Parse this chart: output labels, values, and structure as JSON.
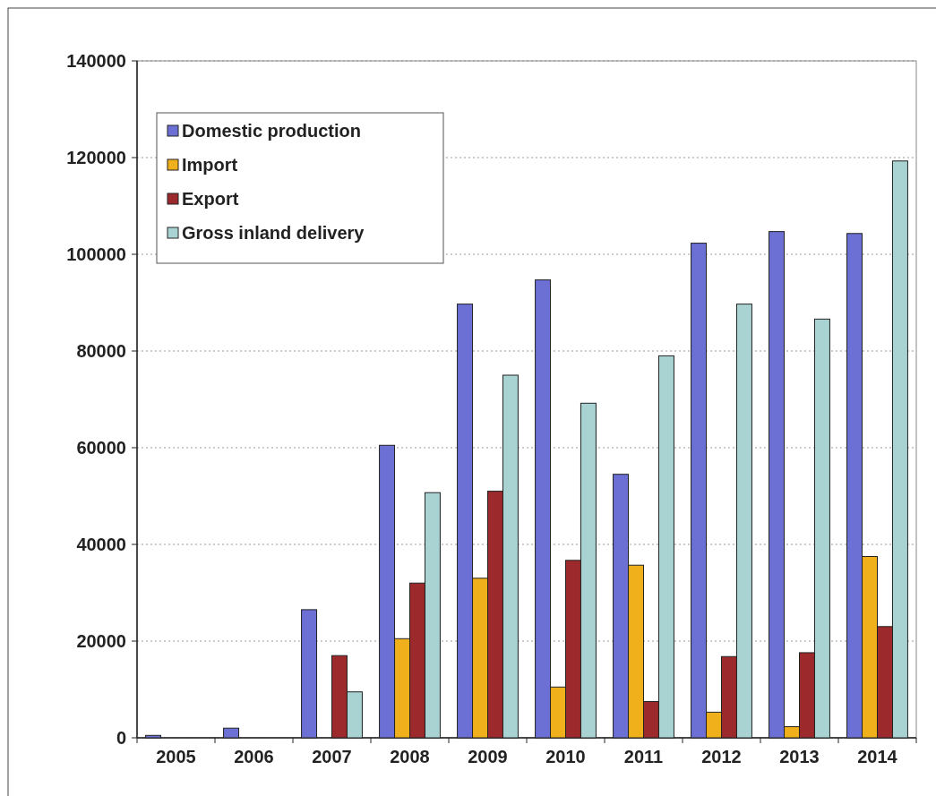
{
  "chart_data": {
    "type": "bar",
    "categories": [
      "2005",
      "2006",
      "2007",
      "2008",
      "2009",
      "2010",
      "2011",
      "2012",
      "2013",
      "2014"
    ],
    "series": [
      {
        "name": "Domestic production",
        "color": "#6c70d4",
        "values": [
          500,
          2000,
          26500,
          60500,
          89700,
          94700,
          54500,
          102300,
          104700,
          104300
        ]
      },
      {
        "name": "Import",
        "color": "#f0b01c",
        "values": [
          0,
          0,
          0,
          20500,
          33000,
          10500,
          35700,
          5300,
          2300,
          37500
        ]
      },
      {
        "name": "Export",
        "color": "#9c2a2c",
        "values": [
          0,
          0,
          17000,
          32000,
          51000,
          36700,
          7500,
          16800,
          17600,
          23000
        ]
      },
      {
        "name": "Gross inland delivery",
        "color": "#a9d3d2",
        "values": [
          0,
          0,
          9500,
          50700,
          75000,
          69200,
          79000,
          89700,
          86600,
          119300
        ]
      }
    ],
    "ylim": [
      0,
      140000
    ],
    "yticks": [
      0,
      20000,
      40000,
      60000,
      80000,
      100000,
      120000,
      140000
    ],
    "grid": "y",
    "legend": "top left"
  }
}
